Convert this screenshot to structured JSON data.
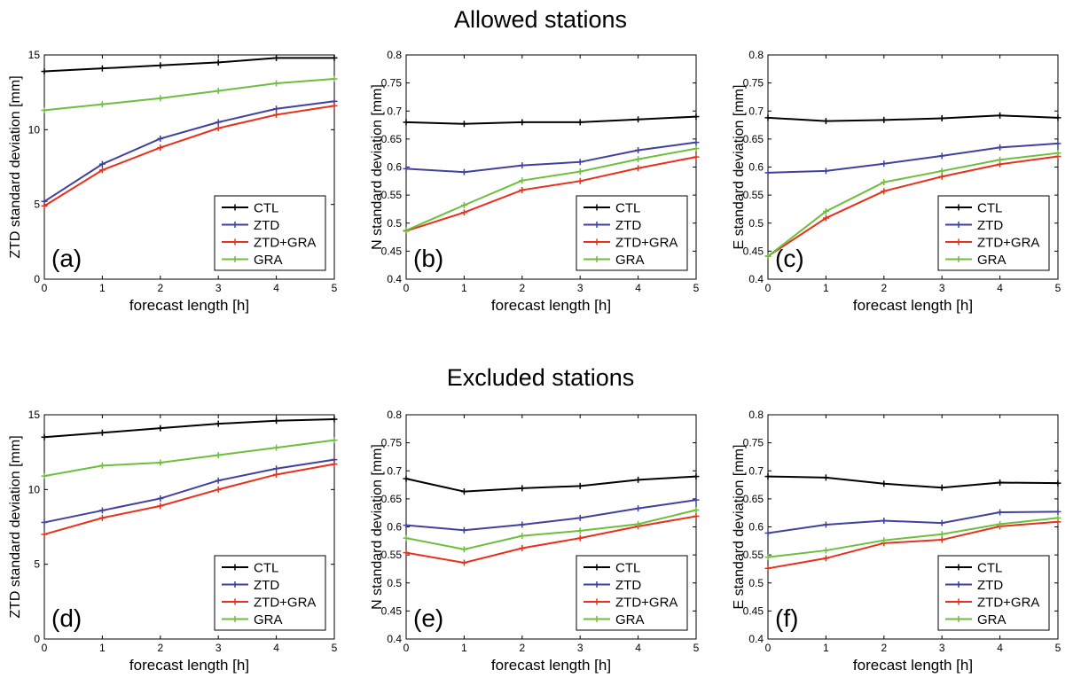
{
  "titles": {
    "top": "Allowed stations",
    "bottom": "Excluded stations"
  },
  "colors": {
    "CTL": "#000000",
    "ZTD": "#4040a0",
    "ZTD+GRA": "#e8301c",
    "GRA": "#6cbf3c"
  },
  "chart_data": [
    {
      "id": "a",
      "type": "line",
      "panel_label": "(a)",
      "xlabel": "forecast length [h]",
      "ylabel": "ZTD standard deviation [mm]",
      "x": [
        0,
        1,
        2,
        3,
        4,
        5
      ],
      "xlim": [
        0,
        5
      ],
      "ylim": [
        0,
        15
      ],
      "yticks": [
        0,
        5,
        10,
        15
      ],
      "ytick_labels": [
        "0",
        "5",
        "10",
        "15"
      ],
      "legend": "bottom-right",
      "grid": false,
      "series": [
        {
          "name": "CTL",
          "values": [
            13.9,
            14.1,
            14.3,
            14.5,
            14.8,
            14.8
          ]
        },
        {
          "name": "ZTD",
          "values": [
            5.2,
            7.7,
            9.4,
            10.5,
            11.4,
            11.9
          ]
        },
        {
          "name": "ZTD+GRA",
          "values": [
            4.9,
            7.3,
            8.8,
            10.1,
            11.0,
            11.6
          ]
        },
        {
          "name": "GRA",
          "values": [
            11.3,
            11.7,
            12.1,
            12.6,
            13.1,
            13.4
          ]
        }
      ]
    },
    {
      "id": "b",
      "type": "line",
      "panel_label": "(b)",
      "xlabel": "forecast length [h]",
      "ylabel": "N standard deviation [mm]",
      "x": [
        0,
        1,
        2,
        3,
        4,
        5
      ],
      "xlim": [
        0,
        5
      ],
      "ylim": [
        0.4,
        0.8
      ],
      "yticks": [
        0.4,
        0.45,
        0.5,
        0.55,
        0.6,
        0.65,
        0.7,
        0.75,
        0.8
      ],
      "ytick_labels": [
        "0.4",
        "0.45",
        "0.5",
        "0.55",
        "0.6",
        "0.65",
        "0.7",
        "0.75",
        "0.8"
      ],
      "legend": "bottom-right",
      "grid": false,
      "series": [
        {
          "name": "CTL",
          "values": [
            0.68,
            0.677,
            0.68,
            0.68,
            0.685,
            0.69
          ]
        },
        {
          "name": "ZTD",
          "values": [
            0.597,
            0.591,
            0.603,
            0.609,
            0.63,
            0.644
          ]
        },
        {
          "name": "ZTD+GRA",
          "values": [
            0.486,
            0.519,
            0.559,
            0.575,
            0.598,
            0.618
          ]
        },
        {
          "name": "GRA",
          "values": [
            0.487,
            0.532,
            0.576,
            0.592,
            0.614,
            0.633
          ]
        }
      ]
    },
    {
      "id": "c",
      "type": "line",
      "panel_label": "(c)",
      "xlabel": "forecast length [h]",
      "ylabel": "E standard deviation [mm]",
      "x": [
        0,
        1,
        2,
        3,
        4,
        5
      ],
      "xlim": [
        0,
        5
      ],
      "ylim": [
        0.4,
        0.8
      ],
      "yticks": [
        0.4,
        0.45,
        0.5,
        0.55,
        0.6,
        0.65,
        0.7,
        0.75,
        0.8
      ],
      "ytick_labels": [
        "0.4",
        "0.45",
        "0.5",
        "0.55",
        "0.6",
        "0.65",
        "0.7",
        "0.75",
        "0.8"
      ],
      "legend": "bottom-right",
      "grid": false,
      "series": [
        {
          "name": "CTL",
          "values": [
            0.688,
            0.682,
            0.684,
            0.687,
            0.692,
            0.688
          ]
        },
        {
          "name": "ZTD",
          "values": [
            0.59,
            0.593,
            0.606,
            0.62,
            0.635,
            0.642
          ]
        },
        {
          "name": "ZTD+GRA",
          "values": [
            0.441,
            0.509,
            0.557,
            0.583,
            0.605,
            0.619
          ]
        },
        {
          "name": "GRA",
          "values": [
            0.441,
            0.521,
            0.573,
            0.593,
            0.613,
            0.625
          ]
        }
      ]
    },
    {
      "id": "d",
      "type": "line",
      "panel_label": "(d)",
      "xlabel": "forecast length [h]",
      "ylabel": "ZTD standard deviation [mm]",
      "x": [
        0,
        1,
        2,
        3,
        4,
        5
      ],
      "xlim": [
        0,
        5
      ],
      "ylim": [
        0,
        15
      ],
      "yticks": [
        0,
        5,
        10,
        15
      ],
      "ytick_labels": [
        "0",
        "5",
        "10",
        "15"
      ],
      "legend": "bottom-right",
      "grid": false,
      "series": [
        {
          "name": "CTL",
          "values": [
            13.5,
            13.8,
            14.1,
            14.4,
            14.6,
            14.7
          ]
        },
        {
          "name": "ZTD",
          "values": [
            7.8,
            8.6,
            9.4,
            10.6,
            11.4,
            12.0
          ]
        },
        {
          "name": "ZTD+GRA",
          "values": [
            7.0,
            8.1,
            8.9,
            10.0,
            11.0,
            11.7
          ]
        },
        {
          "name": "GRA",
          "values": [
            10.9,
            11.6,
            11.8,
            12.3,
            12.8,
            13.3
          ]
        }
      ]
    },
    {
      "id": "e",
      "type": "line",
      "panel_label": "(e)",
      "xlabel": "forecast length [h]",
      "ylabel": "N standard deviation [mm]",
      "x": [
        0,
        1,
        2,
        3,
        4,
        5
      ],
      "xlim": [
        0,
        5
      ],
      "ylim": [
        0.4,
        0.8
      ],
      "yticks": [
        0.4,
        0.45,
        0.5,
        0.55,
        0.6,
        0.65,
        0.7,
        0.75,
        0.8
      ],
      "ytick_labels": [
        "0.4",
        "0.45",
        "0.5",
        "0.55",
        "0.6",
        "0.65",
        "0.7",
        "0.75",
        "0.8"
      ],
      "legend": "bottom-right",
      "grid": false,
      "series": [
        {
          "name": "CTL",
          "values": [
            0.686,
            0.663,
            0.669,
            0.673,
            0.684,
            0.69
          ]
        },
        {
          "name": "ZTD",
          "values": [
            0.603,
            0.594,
            0.604,
            0.616,
            0.633,
            0.648
          ]
        },
        {
          "name": "ZTD+GRA",
          "values": [
            0.554,
            0.536,
            0.562,
            0.58,
            0.601,
            0.619
          ]
        },
        {
          "name": "GRA",
          "values": [
            0.58,
            0.56,
            0.584,
            0.593,
            0.605,
            0.63
          ]
        }
      ]
    },
    {
      "id": "f",
      "type": "line",
      "panel_label": "(f)",
      "xlabel": "forecast length [h]",
      "ylabel": "E standard deviation [mm]",
      "x": [
        0,
        1,
        2,
        3,
        4,
        5
      ],
      "xlim": [
        0,
        5
      ],
      "ylim": [
        0.4,
        0.8
      ],
      "yticks": [
        0.4,
        0.45,
        0.5,
        0.55,
        0.6,
        0.65,
        0.7,
        0.75,
        0.8
      ],
      "ytick_labels": [
        "0.4",
        "0.45",
        "0.5",
        "0.55",
        "0.6",
        "0.65",
        "0.7",
        "0.75",
        "0.8"
      ],
      "legend": "bottom-right",
      "grid": false,
      "series": [
        {
          "name": "CTL",
          "values": [
            0.69,
            0.688,
            0.677,
            0.67,
            0.679,
            0.678
          ]
        },
        {
          "name": "ZTD",
          "values": [
            0.589,
            0.604,
            0.611,
            0.607,
            0.626,
            0.627
          ]
        },
        {
          "name": "ZTD+GRA",
          "values": [
            0.526,
            0.544,
            0.571,
            0.577,
            0.601,
            0.609
          ]
        },
        {
          "name": "GRA",
          "values": [
            0.546,
            0.558,
            0.576,
            0.587,
            0.605,
            0.616
          ]
        }
      ]
    }
  ]
}
